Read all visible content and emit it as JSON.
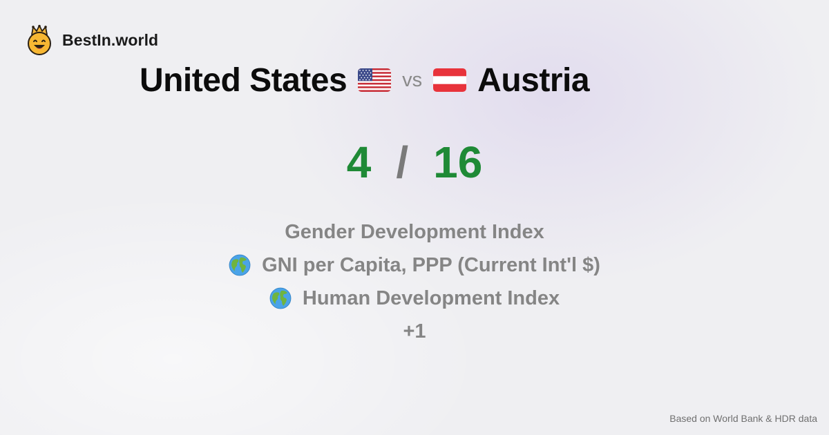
{
  "brand": {
    "name": "BestIn.world",
    "logo_icon": "crown-smiley-icon"
  },
  "comparison": {
    "left_country": "United States",
    "left_flag_icon": "us-flag-icon",
    "vs_text": "vs",
    "right_country": "Austria",
    "right_flag_icon": "austria-flag-icon"
  },
  "score": {
    "left": "4",
    "separator": "/",
    "right": "16",
    "color": "#1f8a36"
  },
  "metrics": {
    "items": [
      {
        "label": "Gender Development Index",
        "icon": null
      },
      {
        "label": "GNI per Capita, PPP (Current Int'l $)",
        "icon": "globe-icon"
      },
      {
        "label": "Human Development Index",
        "icon": "globe-icon"
      }
    ],
    "more": "+1"
  },
  "footer": {
    "source": "Based on World Bank & HDR data"
  }
}
